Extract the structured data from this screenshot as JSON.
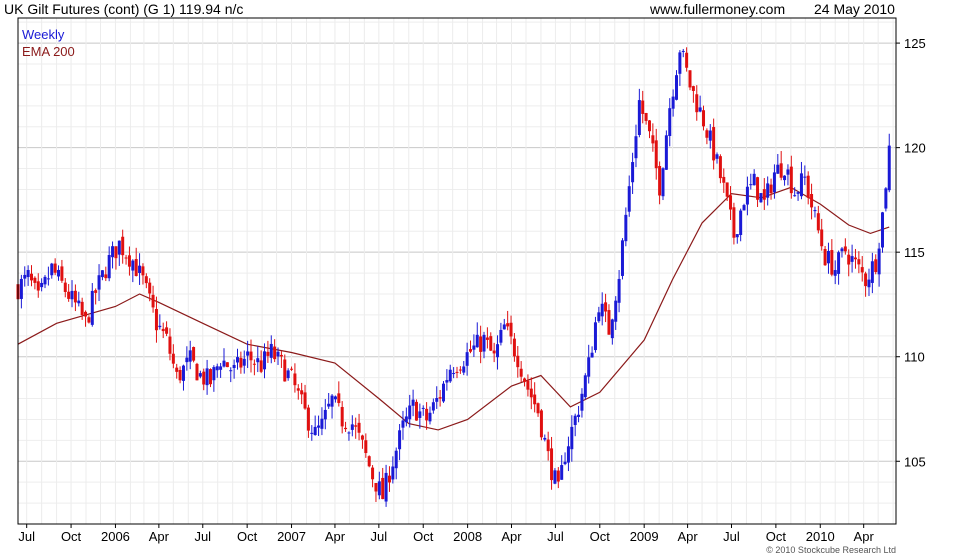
{
  "header": {
    "title": "UK Gilt Futures (cont) (G 1) 119.94 n/c",
    "site": "www.fullermoney.com",
    "date": "24 May 2010"
  },
  "legend": {
    "period": "Weekly",
    "ema": "EMA 200"
  },
  "copyright": "© 2010 Stockcube Research Ltd",
  "colors": {
    "up": "#1a1ad6",
    "down": "#e01010",
    "ema": "#8b1a1a",
    "grid": "#d8d8d8",
    "axis": "#000000",
    "legend_period": "#1a1ad6",
    "legend_ema": "#8b1a1a"
  },
  "chart_data": {
    "type": "candlestick",
    "title": "UK Gilt Futures (cont) (G 1) 119.94 n/c",
    "period": "Weekly",
    "x_range": [
      "2005-06-13",
      "2010-06-07"
    ],
    "ylim": [
      102,
      126.2
    ],
    "y_ticks": [
      105,
      110,
      115,
      120,
      125
    ],
    "x_ticks": [
      {
        "label": "Jul",
        "date": "2005-07-01"
      },
      {
        "label": "Oct",
        "date": "2005-10-01"
      },
      {
        "label": "2006",
        "date": "2006-01-01"
      },
      {
        "label": "Apr",
        "date": "2006-04-01"
      },
      {
        "label": "Jul",
        "date": "2006-07-01"
      },
      {
        "label": "Oct",
        "date": "2006-10-01"
      },
      {
        "label": "2007",
        "date": "2007-01-01"
      },
      {
        "label": "Apr",
        "date": "2007-04-01"
      },
      {
        "label": "Jul",
        "date": "2007-07-01"
      },
      {
        "label": "Oct",
        "date": "2007-10-01"
      },
      {
        "label": "2008",
        "date": "2008-01-01"
      },
      {
        "label": "Apr",
        "date": "2008-04-01"
      },
      {
        "label": "Jul",
        "date": "2008-07-01"
      },
      {
        "label": "Oct",
        "date": "2008-10-01"
      },
      {
        "label": "2009",
        "date": "2009-01-01"
      },
      {
        "label": "Apr",
        "date": "2009-04-01"
      },
      {
        "label": "Jul",
        "date": "2009-07-01"
      },
      {
        "label": "Oct",
        "date": "2009-10-01"
      },
      {
        "label": "2010",
        "date": "2010-01-01"
      },
      {
        "label": "Apr",
        "date": "2010-04-01"
      }
    ],
    "grid": true,
    "series": [
      {
        "name": "Weekly",
        "style": "candles",
        "weekly_close_path": [
          [
            "2005-06-13",
            113.3
          ],
          [
            "2005-07-04",
            113.8
          ],
          [
            "2005-07-25",
            112.7
          ],
          [
            "2005-08-22",
            114.2
          ],
          [
            "2005-09-19",
            113.2
          ],
          [
            "2005-10-17",
            112.2
          ],
          [
            "2005-10-31",
            111.6
          ],
          [
            "2005-11-21",
            113.1
          ],
          [
            "2005-12-19",
            114.6
          ],
          [
            "2006-01-09",
            115.4
          ],
          [
            "2006-02-06",
            114.6
          ],
          [
            "2006-02-27",
            113.6
          ],
          [
            "2006-03-27",
            111.6
          ],
          [
            "2006-04-17",
            110.8
          ],
          [
            "2006-05-08",
            109.0
          ],
          [
            "2006-06-05",
            109.8
          ],
          [
            "2006-06-26",
            109.1
          ],
          [
            "2006-07-17",
            108.8
          ],
          [
            "2006-08-07",
            109.9
          ],
          [
            "2006-09-04",
            109.3
          ],
          [
            "2006-10-02",
            110.0
          ],
          [
            "2006-10-30",
            109.6
          ],
          [
            "2006-11-20",
            110.2
          ],
          [
            "2006-12-11",
            109.6
          ],
          [
            "2007-01-01",
            108.9
          ],
          [
            "2007-01-29",
            107.3
          ],
          [
            "2007-02-19",
            106.3
          ],
          [
            "2007-03-05",
            106.7
          ],
          [
            "2007-03-26",
            107.9
          ],
          [
            "2007-04-16",
            107.0
          ],
          [
            "2007-05-07",
            106.8
          ],
          [
            "2007-05-28",
            105.7
          ],
          [
            "2007-06-18",
            104.3
          ],
          [
            "2007-07-09",
            103.3
          ],
          [
            "2007-07-23",
            104.5
          ],
          [
            "2007-08-20",
            106.6
          ],
          [
            "2007-09-10",
            107.6
          ],
          [
            "2007-10-08",
            107.0
          ],
          [
            "2007-11-05",
            108.2
          ],
          [
            "2007-11-26",
            109.5
          ],
          [
            "2007-12-17",
            109.8
          ],
          [
            "2008-01-14",
            110.4
          ],
          [
            "2008-02-04",
            110.8
          ],
          [
            "2008-02-25",
            109.9
          ],
          [
            "2008-03-17",
            111.4
          ],
          [
            "2008-04-14",
            110.0
          ],
          [
            "2008-05-05",
            108.5
          ],
          [
            "2008-05-26",
            107.4
          ],
          [
            "2008-06-16",
            105.2
          ],
          [
            "2008-07-07",
            103.5
          ],
          [
            "2008-07-21",
            105.4
          ],
          [
            "2008-08-18",
            107.6
          ],
          [
            "2008-09-08",
            109.6
          ],
          [
            "2008-09-29",
            112.6
          ],
          [
            "2008-10-20",
            111.3
          ],
          [
            "2008-11-10",
            114.0
          ],
          [
            "2008-12-01",
            118.1
          ],
          [
            "2008-12-22",
            122.2
          ],
          [
            "2009-01-12",
            120.5
          ],
          [
            "2009-02-02",
            118.2
          ],
          [
            "2009-02-23",
            122.0
          ],
          [
            "2009-03-16",
            124.8
          ],
          [
            "2009-04-06",
            123.0
          ],
          [
            "2009-05-04",
            121.3
          ],
          [
            "2009-05-25",
            119.8
          ],
          [
            "2009-06-15",
            118.0
          ],
          [
            "2009-07-06",
            115.8
          ],
          [
            "2009-07-27",
            117.6
          ],
          [
            "2009-08-17",
            118.3
          ],
          [
            "2009-09-07",
            117.3
          ],
          [
            "2009-09-28",
            118.8
          ],
          [
            "2009-10-19",
            119.2
          ],
          [
            "2009-11-09",
            117.9
          ],
          [
            "2009-11-30",
            118.5
          ],
          [
            "2009-12-21",
            116.6
          ],
          [
            "2010-01-11",
            114.8
          ],
          [
            "2010-02-01",
            114.2
          ],
          [
            "2010-02-22",
            115.1
          ],
          [
            "2010-03-15",
            114.4
          ],
          [
            "2010-04-05",
            113.7
          ],
          [
            "2010-04-26",
            114.6
          ],
          [
            "2010-05-10",
            116.8
          ],
          [
            "2010-05-24",
            119.94
          ]
        ]
      },
      {
        "name": "EMA 200",
        "style": "line",
        "points": [
          [
            "2005-06-13",
            110.6
          ],
          [
            "2005-09-01",
            111.6
          ],
          [
            "2006-01-01",
            112.4
          ],
          [
            "2006-02-20",
            113.0
          ],
          [
            "2006-04-01",
            112.6
          ],
          [
            "2006-07-01",
            111.6
          ],
          [
            "2006-10-01",
            110.6
          ],
          [
            "2007-01-01",
            110.2
          ],
          [
            "2007-04-01",
            109.7
          ],
          [
            "2007-07-01",
            108.0
          ],
          [
            "2007-09-01",
            106.8
          ],
          [
            "2007-11-01",
            106.5
          ],
          [
            "2008-01-01",
            107.0
          ],
          [
            "2008-04-01",
            108.6
          ],
          [
            "2008-06-01",
            109.1
          ],
          [
            "2008-08-01",
            107.6
          ],
          [
            "2008-10-01",
            108.3
          ],
          [
            "2009-01-01",
            110.8
          ],
          [
            "2009-03-01",
            113.7
          ],
          [
            "2009-05-01",
            116.4
          ],
          [
            "2009-07-01",
            117.8
          ],
          [
            "2009-09-01",
            117.6
          ],
          [
            "2009-11-01",
            118.1
          ],
          [
            "2010-01-01",
            117.3
          ],
          [
            "2010-03-01",
            116.3
          ],
          [
            "2010-04-15",
            115.9
          ],
          [
            "2010-05-24",
            116.2
          ]
        ]
      }
    ]
  }
}
